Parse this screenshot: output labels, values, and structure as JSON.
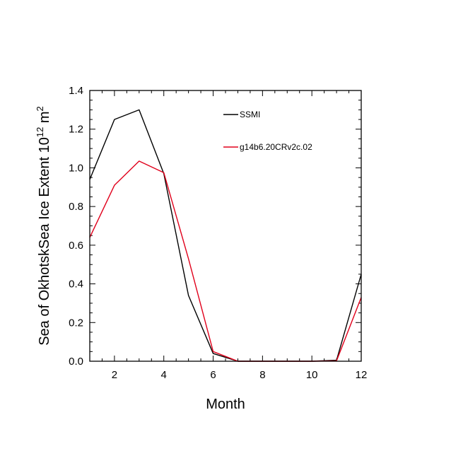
{
  "chart_data": {
    "type": "line",
    "xlabel": "Month",
    "ylabel": "Sea of OkhotskSea Ice Extent 10",
    "ylabel_superscript": "12",
    "ylabel_unit": "m",
    "ylabel_unit_superscript": "2",
    "xlim": [
      1,
      12
    ],
    "ylim": [
      0,
      1.4
    ],
    "xticks": [
      2,
      4,
      6,
      8,
      10,
      12
    ],
    "xtick_labels": [
      "2",
      "4",
      "6",
      "8",
      "10",
      "12"
    ],
    "yticks": [
      0,
      0.2,
      0.4,
      0.6,
      0.8,
      1.0,
      1.2,
      1.4
    ],
    "ytick_labels": [
      "0.0",
      "0.2",
      "0.4",
      "0.6",
      "0.8",
      "1.0",
      "1.2",
      "1.4"
    ],
    "grid": false,
    "legend_position": "top-right",
    "x": [
      1,
      2,
      3,
      4,
      5,
      6,
      7,
      8,
      9,
      10,
      11,
      12
    ],
    "series": [
      {
        "name": "SSMI",
        "color": "#000000",
        "values": [
          0.94,
          1.25,
          1.3,
          0.97,
          0.34,
          0.04,
          0.0,
          0.0,
          0.0,
          0.0,
          0.005,
          0.45
        ]
      },
      {
        "name": "g14b6.20CRv2c.02",
        "color": "#e0001b",
        "values": [
          0.64,
          0.91,
          1.035,
          0.975,
          0.53,
          0.05,
          0.0,
          0.0,
          0.0,
          0.0,
          0.002,
          0.33
        ]
      }
    ]
  }
}
